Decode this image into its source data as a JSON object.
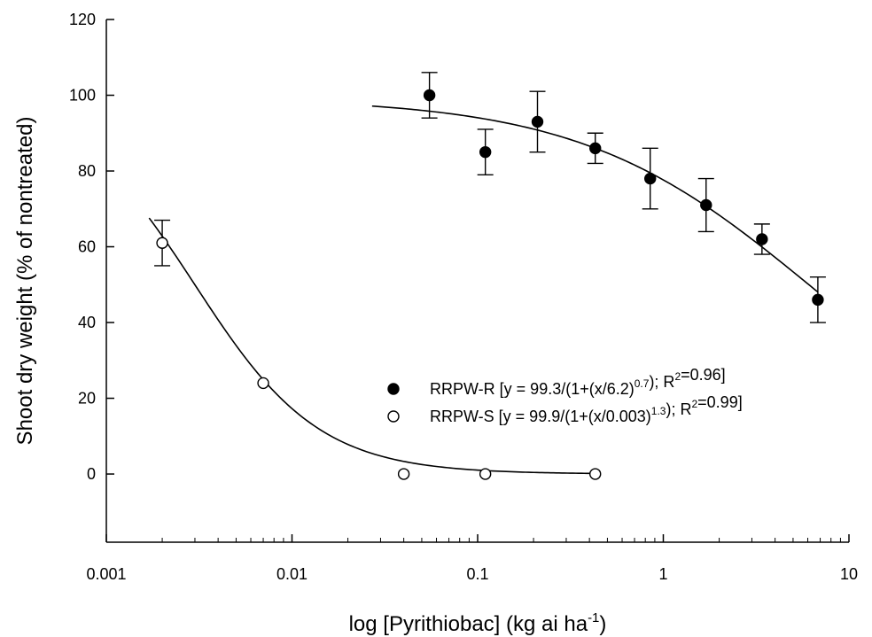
{
  "chart_data": {
    "type": "scatter",
    "xscale": "log",
    "xlabel": {
      "text": "log [Pyrithiobac] (kg ai ha",
      "sup": "-1",
      "end": ")"
    },
    "ylabel": "Shoot dry weight (% of nontreated)",
    "xlim": [
      0.001,
      10
    ],
    "ylim": [
      -18,
      120
    ],
    "xticks": [
      {
        "value": 0.001,
        "label": "0.001"
      },
      {
        "value": 0.01,
        "label": "0.01"
      },
      {
        "value": 0.1,
        "label": "0.1"
      },
      {
        "value": 1,
        "label": "1"
      },
      {
        "value": 10,
        "label": "10"
      }
    ],
    "yticks": [
      {
        "value": 0,
        "label": "0"
      },
      {
        "value": 20,
        "label": "20"
      },
      {
        "value": 40,
        "label": "40"
      },
      {
        "value": 60,
        "label": "60"
      },
      {
        "value": 80,
        "label": "80"
      },
      {
        "value": 100,
        "label": "100"
      },
      {
        "value": 120,
        "label": "120"
      }
    ],
    "grid": false,
    "legend_position": "center-right",
    "series": [
      {
        "name": "RRPW-R",
        "legend_parts": [
          {
            "text": "RRPW-R [y = 99.3/(1+(x/6.2)"
          },
          {
            "text": "0.7",
            "sup": true
          },
          {
            "text": "); R"
          },
          {
            "text": "2",
            "sup": true
          },
          {
            "text": "=0.96]"
          }
        ],
        "marker": "filled-circle",
        "color": "#000000",
        "points": [
          {
            "x": 0.055,
            "y": 100,
            "err": 6
          },
          {
            "x": 0.11,
            "y": 85,
            "err": 6
          },
          {
            "x": 0.21,
            "y": 93,
            "err": 8
          },
          {
            "x": 0.43,
            "y": 86,
            "err": 4
          },
          {
            "x": 0.85,
            "y": 78,
            "err": 8
          },
          {
            "x": 1.7,
            "y": 71,
            "err": 7
          },
          {
            "x": 3.4,
            "y": 62,
            "err": 4
          },
          {
            "x": 6.8,
            "y": 46,
            "err": 6
          }
        ],
        "fit": {
          "top": 99.3,
          "ec50": 6.2,
          "slope": 0.7,
          "xmin": 0.027,
          "xmax": 6.8
        }
      },
      {
        "name": "RRPW-S",
        "legend_parts": [
          {
            "text": "RRPW-S [y = 99.9/(1+(x/0.003)"
          },
          {
            "text": "1.3",
            "sup": true
          },
          {
            "text": "); R"
          },
          {
            "text": "2",
            "sup": true
          },
          {
            "text": "=0.99]"
          }
        ],
        "marker": "open-circle",
        "color": "#000000",
        "points": [
          {
            "x": 0.002,
            "y": 61,
            "err": 6
          },
          {
            "x": 0.007,
            "y": 24,
            "err": 0
          },
          {
            "x": 0.04,
            "y": 0,
            "err": 0
          },
          {
            "x": 0.11,
            "y": 0,
            "err": 0
          },
          {
            "x": 0.43,
            "y": 0,
            "err": 0
          }
        ],
        "fit": {
          "top": 99.9,
          "ec50": 0.003,
          "slope": 1.3,
          "xmin": 0.0017,
          "xmax": 0.43
        }
      }
    ]
  }
}
